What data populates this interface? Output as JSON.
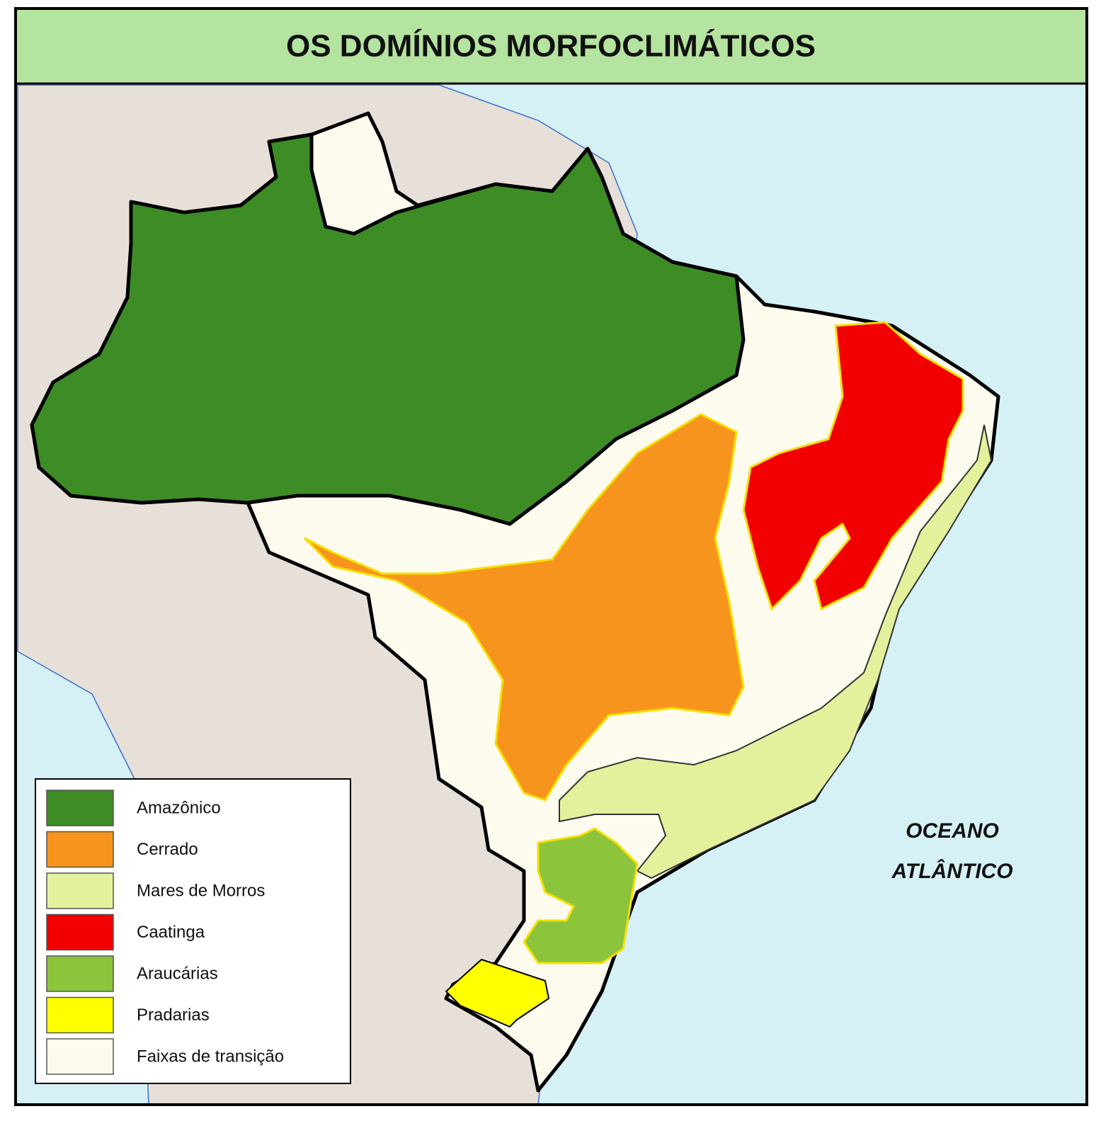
{
  "title": "OS DOMÍNIOS MORFOCLIMÁTICOS",
  "ocean_label": [
    "OCEANO",
    "ATLÂNTICO"
  ],
  "legend": [
    {
      "label": "Amazônico",
      "color": "#3d8c26"
    },
    {
      "label": "Cerrado",
      "color": "#f7941d"
    },
    {
      "label": "Mares de Morros",
      "color": "#e4f19c"
    },
    {
      "label": "Caatinga",
      "color": "#f20000"
    },
    {
      "label": "Araucárias",
      "color": "#8cc43c"
    },
    {
      "label": "Pradarias",
      "color": "#ffff00"
    },
    {
      "label": "Faixas de transição",
      "color": "#fdfbee"
    }
  ]
}
